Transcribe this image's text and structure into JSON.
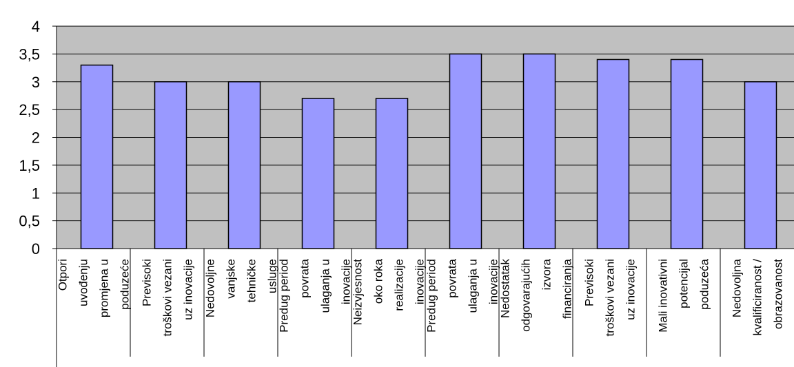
{
  "chart_data": {
    "type": "bar",
    "ylim": [
      0,
      4
    ],
    "yticks": [
      "0",
      "0,5",
      "1",
      "1,5",
      "2",
      "2,5",
      "3",
      "3,5",
      "4"
    ],
    "grid": true,
    "categories": [
      [
        "Otpori",
        "uvođenju",
        "promjena u",
        "poduzeće"
      ],
      [
        "Previsoki",
        "troškovi vezani",
        "uz inovacije"
      ],
      [
        "Nedovoljne",
        "vanjske",
        "tehničke",
        "usluge"
      ],
      [
        "Predug period",
        "povrata",
        "ulaganja u",
        "inovacije"
      ],
      [
        "Neizvjesnost",
        "oko roka",
        "realizacije",
        "inovacije"
      ],
      [
        "Predug period",
        "povrata",
        "ulaganja u",
        "inovacije"
      ],
      [
        "Nedostatak",
        "odgovarajućih",
        "izvora",
        "financiranja"
      ],
      [
        "Previsoki",
        "troškovi vezani",
        "uz inovacije"
      ],
      [
        "Mali inovativni",
        "potencijal",
        "poduzeća"
      ],
      [
        "Nedovoljna",
        "kvalificiranost /",
        "obrazovanost"
      ]
    ],
    "values": [
      3.3,
      3.0,
      3.0,
      2.7,
      2.7,
      3.5,
      3.5,
      3.4,
      3.4,
      3.0
    ],
    "colors": {
      "bar": "#9999ff",
      "plot_background": "#c0c0c0",
      "grid": "#000000"
    }
  }
}
